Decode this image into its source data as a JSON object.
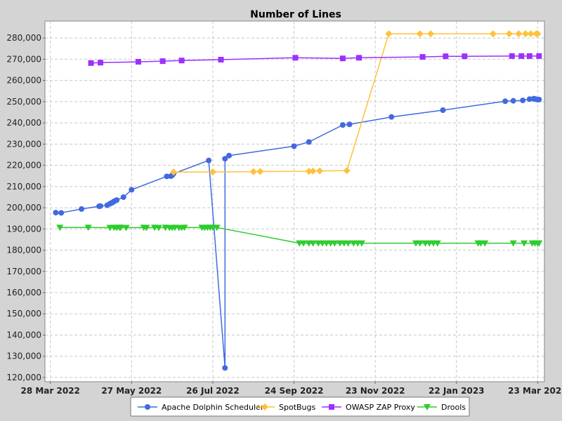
{
  "chart_data": {
    "type": "line",
    "title": "Number of Lines",
    "xlabel": "",
    "ylabel": "",
    "x_axis_type": "date",
    "xlim": [
      "2022-03-24",
      "2023-03-28"
    ],
    "ylim": [
      118000,
      288000
    ],
    "yticks": [
      120000,
      130000,
      140000,
      150000,
      160000,
      170000,
      180000,
      190000,
      200000,
      210000,
      220000,
      230000,
      240000,
      250000,
      260000,
      270000,
      280000
    ],
    "ytick_labels": [
      "120,000",
      "130,000",
      "140,000",
      "150,000",
      "160,000",
      "170,000",
      "180,000",
      "190,000",
      "200,000",
      "210,000",
      "220,000",
      "230,000",
      "240,000",
      "250,000",
      "260,000",
      "270,000",
      "280,000"
    ],
    "xticks": [
      "2022-03-28",
      "2022-05-27",
      "2022-07-26",
      "2022-09-24",
      "2022-11-23",
      "2023-01-22",
      "2023-03-23"
    ],
    "xtick_labels": [
      "28 Mar 2022",
      "27 May 2022",
      "26 Jul 2022",
      "24 Sep 2022",
      "23 Nov 2022",
      "22 Jan 2023",
      "23 Mar 2023"
    ],
    "grid": true,
    "legend_position": "bottom",
    "background": "#ffffff",
    "series": [
      {
        "name": "Apache Dolphin Scheduler",
        "color": "#4169e1",
        "marker": "circle",
        "points": [
          [
            "2022-04-01",
            197700
          ],
          [
            "2022-04-05",
            197600
          ],
          [
            "2022-04-20",
            199400
          ],
          [
            "2022-05-03",
            200700
          ],
          [
            "2022-05-04",
            200800
          ],
          [
            "2022-05-09",
            201200
          ],
          [
            "2022-05-11",
            201900
          ],
          [
            "2022-05-12",
            202200
          ],
          [
            "2022-05-13",
            202500
          ],
          [
            "2022-05-14",
            203000
          ],
          [
            "2022-05-15",
            203300
          ],
          [
            "2022-05-16",
            203600
          ],
          [
            "2022-05-21",
            205000
          ],
          [
            "2022-05-27",
            208500
          ],
          [
            "2022-06-22",
            214800
          ],
          [
            "2022-06-25",
            214900
          ],
          [
            "2022-06-26",
            215300
          ],
          [
            "2022-06-27",
            216100
          ],
          [
            "2022-07-23",
            222300
          ],
          [
            "2022-08-04",
            124500
          ],
          [
            "2022-08-04",
            223100
          ],
          [
            "2022-08-07",
            224600
          ],
          [
            "2022-09-24",
            229000
          ],
          [
            "2022-10-05",
            231000
          ],
          [
            "2022-10-30",
            239000
          ],
          [
            "2022-11-04",
            239300
          ],
          [
            "2022-12-05",
            242800
          ],
          [
            "2023-01-12",
            246000
          ],
          [
            "2023-02-27",
            250200
          ],
          [
            "2023-03-05",
            250400
          ],
          [
            "2023-03-12",
            250600
          ],
          [
            "2023-03-17",
            251200
          ],
          [
            "2023-03-20",
            251400
          ],
          [
            "2023-03-21",
            251300
          ],
          [
            "2023-03-22",
            251100
          ],
          [
            "2023-03-23",
            251000
          ],
          [
            "2023-03-24",
            251000
          ]
        ]
      },
      {
        "name": "SpotBugs",
        "color": "#ffc13b",
        "marker": "diamond",
        "points": [
          [
            "2022-06-27",
            216800
          ],
          [
            "2022-07-26",
            216900
          ],
          [
            "2022-08-25",
            217000
          ],
          [
            "2022-08-30",
            217100
          ],
          [
            "2022-10-05",
            217200
          ],
          [
            "2022-10-08",
            217300
          ],
          [
            "2022-10-13",
            217400
          ],
          [
            "2022-11-02",
            217500
          ],
          [
            "2022-12-03",
            282000
          ],
          [
            "2022-12-26",
            282000
          ],
          [
            "2023-01-03",
            282000
          ],
          [
            "2023-02-18",
            282000
          ],
          [
            "2023-03-02",
            282000
          ],
          [
            "2023-03-09",
            282000
          ],
          [
            "2023-03-14",
            282000
          ],
          [
            "2023-03-18",
            282000
          ],
          [
            "2023-03-22",
            282000
          ],
          [
            "2023-03-23",
            282000
          ]
        ]
      },
      {
        "name": "OWASP ZAP Proxy",
        "color": "#9b30ff",
        "marker": "square",
        "points": [
          [
            "2022-04-27",
            268200
          ],
          [
            "2022-05-04",
            268400
          ],
          [
            "2022-06-01",
            268800
          ],
          [
            "2022-06-19",
            269100
          ],
          [
            "2022-07-03",
            269400
          ],
          [
            "2022-08-01",
            269800
          ],
          [
            "2022-09-25",
            270700
          ],
          [
            "2022-10-30",
            270400
          ],
          [
            "2022-11-11",
            270700
          ],
          [
            "2022-12-28",
            271100
          ],
          [
            "2023-01-14",
            271400
          ],
          [
            "2023-01-28",
            271400
          ],
          [
            "2023-03-04",
            271500
          ],
          [
            "2023-03-11",
            271500
          ],
          [
            "2023-03-17",
            271500
          ],
          [
            "2023-03-24",
            271500
          ]
        ]
      },
      {
        "name": "Drools",
        "color": "#2ecc2e",
        "marker": "triangle-down",
        "points": [
          [
            "2022-04-04",
            190700
          ],
          [
            "2022-04-25",
            190700
          ],
          [
            "2022-05-11",
            190600
          ],
          [
            "2022-05-14",
            190700
          ],
          [
            "2022-05-16",
            190600
          ],
          [
            "2022-05-18",
            190700
          ],
          [
            "2022-05-19",
            190700
          ],
          [
            "2022-05-23",
            190600
          ],
          [
            "2022-06-05",
            190700
          ],
          [
            "2022-06-07",
            190600
          ],
          [
            "2022-06-13",
            190700
          ],
          [
            "2022-06-16",
            190600
          ],
          [
            "2022-06-21",
            190700
          ],
          [
            "2022-06-24",
            190600
          ],
          [
            "2022-06-26",
            190600
          ],
          [
            "2022-06-28",
            190700
          ],
          [
            "2022-07-01",
            190600
          ],
          [
            "2022-07-03",
            190600
          ],
          [
            "2022-07-05",
            190700
          ],
          [
            "2022-07-18",
            190700
          ],
          [
            "2022-07-20",
            190600
          ],
          [
            "2022-07-22",
            190700
          ],
          [
            "2022-07-24",
            190700
          ],
          [
            "2022-07-26",
            190700
          ],
          [
            "2022-07-29",
            190700
          ],
          [
            "2022-09-28",
            183300
          ],
          [
            "2022-10-01",
            183300
          ],
          [
            "2022-10-05",
            183300
          ],
          [
            "2022-10-08",
            183300
          ],
          [
            "2022-10-12",
            183300
          ],
          [
            "2022-10-15",
            183300
          ],
          [
            "2022-10-18",
            183300
          ],
          [
            "2022-10-21",
            183300
          ],
          [
            "2022-10-24",
            183300
          ],
          [
            "2022-10-28",
            183300
          ],
          [
            "2022-10-31",
            183300
          ],
          [
            "2022-11-03",
            183300
          ],
          [
            "2022-11-07",
            183300
          ],
          [
            "2022-11-10",
            183300
          ],
          [
            "2022-11-13",
            183300
          ],
          [
            "2022-12-23",
            183300
          ],
          [
            "2022-12-26",
            183300
          ],
          [
            "2022-12-30",
            183300
          ],
          [
            "2023-01-02",
            183300
          ],
          [
            "2023-01-05",
            183300
          ],
          [
            "2023-01-08",
            183300
          ],
          [
            "2023-02-07",
            183300
          ],
          [
            "2023-02-09",
            183300
          ],
          [
            "2023-02-12",
            183300
          ],
          [
            "2023-03-05",
            183300
          ],
          [
            "2023-03-13",
            183300
          ],
          [
            "2023-03-19",
            183300
          ],
          [
            "2023-03-21",
            183300
          ],
          [
            "2023-03-23",
            183300
          ],
          [
            "2023-03-24",
            183300
          ]
        ]
      }
    ]
  }
}
